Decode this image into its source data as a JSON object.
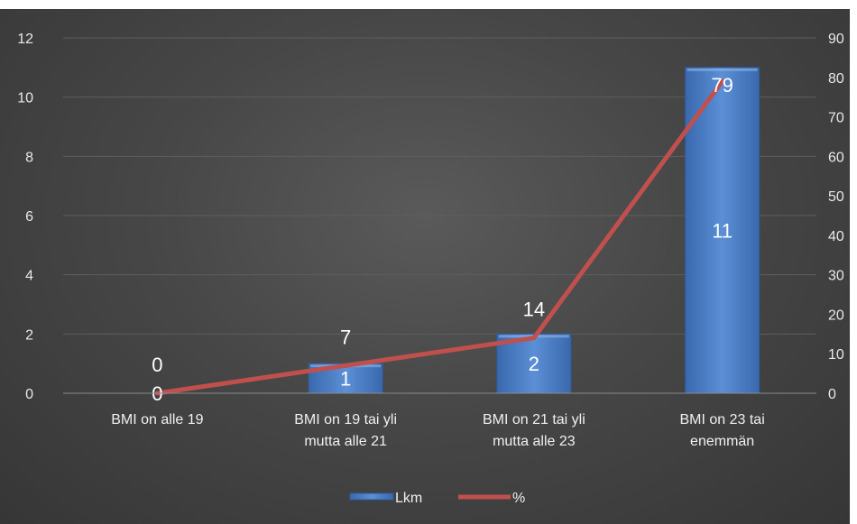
{
  "chart_data": {
    "type": "bar",
    "categories": [
      [
        "BMI on alle 19"
      ],
      [
        "BMI on 19 tai yli",
        "mutta alle 21"
      ],
      [
        "BMI on 21 tai yli",
        "mutta alle 23"
      ],
      [
        "BMI on 23 tai",
        "enemmän"
      ]
    ],
    "series": [
      {
        "name": "Lkm",
        "type": "bar",
        "axis": "left",
        "values": [
          0,
          1,
          2,
          11
        ],
        "labels": [
          "0",
          "1",
          "2",
          "11"
        ]
      },
      {
        "name": "%",
        "type": "line",
        "axis": "right",
        "values": [
          0,
          7,
          14,
          79
        ],
        "labels": [
          "0",
          "7",
          "14",
          "79"
        ]
      }
    ],
    "y_left": {
      "min": 0,
      "max": 12,
      "ticks": [
        "0",
        "2",
        "4",
        "6",
        "8",
        "10",
        "12"
      ]
    },
    "y_right": {
      "min": 0,
      "max": 90,
      "ticks": [
        "0",
        "10",
        "20",
        "30",
        "40",
        "50",
        "60",
        "70",
        "80",
        "90"
      ]
    },
    "grid": true,
    "legend_position": "bottom",
    "colors": {
      "bar": "#4a7ec9",
      "line": "#c0504d"
    }
  }
}
